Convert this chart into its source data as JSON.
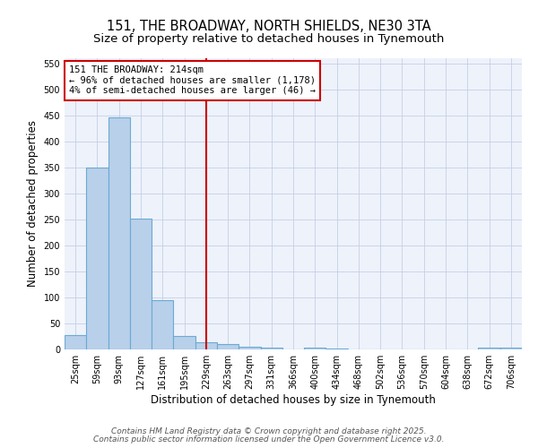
{
  "title_line1": "151, THE BROADWAY, NORTH SHIELDS, NE30 3TA",
  "title_line2": "Size of property relative to detached houses in Tynemouth",
  "xlabel": "Distribution of detached houses by size in Tynemouth",
  "ylabel": "Number of detached properties",
  "categories": [
    "25sqm",
    "59sqm",
    "93sqm",
    "127sqm",
    "161sqm",
    "195sqm",
    "229sqm",
    "263sqm",
    "297sqm",
    "331sqm",
    "366sqm",
    "400sqm",
    "434sqm",
    "468sqm",
    "502sqm",
    "536sqm",
    "570sqm",
    "604sqm",
    "638sqm",
    "672sqm",
    "706sqm"
  ],
  "values": [
    28,
    350,
    447,
    252,
    95,
    25,
    14,
    11,
    6,
    4,
    0,
    4,
    1,
    0,
    0,
    0,
    0,
    0,
    0,
    4,
    4
  ],
  "bar_color": "#b8d0ea",
  "bar_edge_color": "#6aaad4",
  "red_line_x": 6.0,
  "red_line_color": "#cc0000",
  "ann_line1": "151 THE BROADWAY: 214sqm",
  "ann_line2": "← 96% of detached houses are smaller (1,178)",
  "ann_line3": "4% of semi-detached houses are larger (46) →",
  "footnote_line1": "Contains HM Land Registry data © Crown copyright and database right 2025.",
  "footnote_line2": "Contains public sector information licensed under the Open Government Licence v3.0.",
  "ylim": [
    0,
    560
  ],
  "yticks": [
    0,
    50,
    100,
    150,
    200,
    250,
    300,
    350,
    400,
    450,
    500,
    550
  ],
  "bg_color": "#eef2fa",
  "grid_color": "#c5cfe8",
  "title_fontsize": 10.5,
  "subtitle_fontsize": 9.5,
  "axis_label_fontsize": 8.5,
  "tick_fontsize": 7,
  "ann_fontsize": 7.5,
  "footnote_fontsize": 6.5
}
